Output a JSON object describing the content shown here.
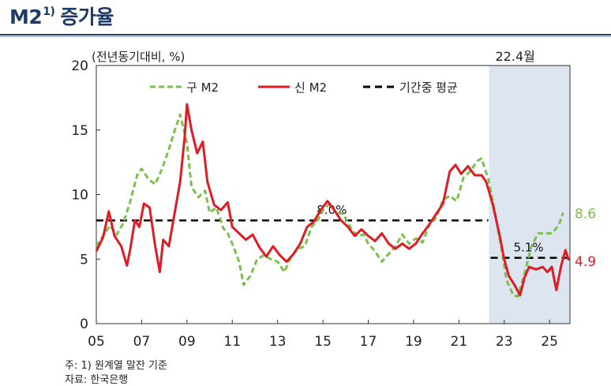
{
  "header": {
    "title": "M2",
    "title_sup": "1)",
    "title_rest": "증가율"
  },
  "chart_data": {
    "type": "line",
    "ylabel": "(전년동기대비, %)",
    "ylim": [
      0,
      20
    ],
    "yticks": [
      0,
      5,
      10,
      15,
      20
    ],
    "xlim": [
      2005,
      2025.9
    ],
    "xticks": [
      2005,
      2007,
      2009,
      2011,
      2013,
      2015,
      2017,
      2019,
      2021,
      2023,
      2025
    ],
    "xtick_labels": [
      "05",
      "07",
      "09",
      "11",
      "13",
      "15",
      "17",
      "19",
      "21",
      "23",
      "25"
    ],
    "shaded_region": {
      "start": 2022.33,
      "end": 2025.9,
      "label": "22.4월",
      "color": "#dce5f0"
    },
    "legend": {
      "position": "top",
      "items": [
        "구 M2",
        "신 M2",
        "기간중 평균"
      ]
    },
    "series": [
      {
        "name": "구 M2",
        "color": "#7cc04b",
        "style": "dashed",
        "points": [
          [
            2005.0,
            6.0
          ],
          [
            2005.3,
            6.8
          ],
          [
            2005.6,
            7.6
          ],
          [
            2005.9,
            6.9
          ],
          [
            2006.2,
            7.8
          ],
          [
            2006.5,
            9.5
          ],
          [
            2006.8,
            11.5
          ],
          [
            2007.0,
            12.0
          ],
          [
            2007.3,
            11.2
          ],
          [
            2007.6,
            10.8
          ],
          [
            2007.9,
            12.0
          ],
          [
            2008.2,
            13.5
          ],
          [
            2008.5,
            15.2
          ],
          [
            2008.7,
            16.2
          ],
          [
            2009.0,
            14.0
          ],
          [
            2009.2,
            10.6
          ],
          [
            2009.5,
            9.8
          ],
          [
            2009.8,
            10.3
          ],
          [
            2010.0,
            8.6
          ],
          [
            2010.3,
            9.0
          ],
          [
            2010.6,
            7.4
          ],
          [
            2010.8,
            7.0
          ],
          [
            2011.0,
            6.2
          ],
          [
            2011.3,
            4.8
          ],
          [
            2011.5,
            3.0
          ],
          [
            2011.8,
            3.7
          ],
          [
            2012.1,
            5.0
          ],
          [
            2012.4,
            5.3
          ],
          [
            2012.7,
            5.0
          ],
          [
            2013.0,
            4.8
          ],
          [
            2013.3,
            4.0
          ],
          [
            2013.6,
            5.2
          ],
          [
            2013.9,
            5.8
          ],
          [
            2014.2,
            6.0
          ],
          [
            2014.5,
            7.5
          ],
          [
            2014.8,
            8.1
          ],
          [
            2015.0,
            8.8
          ],
          [
            2015.3,
            9.3
          ],
          [
            2015.6,
            8.6
          ],
          [
            2015.9,
            8.5
          ],
          [
            2016.2,
            7.5
          ],
          [
            2016.5,
            6.8
          ],
          [
            2016.8,
            6.9
          ],
          [
            2017.0,
            6.2
          ],
          [
            2017.3,
            5.6
          ],
          [
            2017.6,
            4.8
          ],
          [
            2017.9,
            5.4
          ],
          [
            2018.2,
            6.0
          ],
          [
            2018.5,
            6.9
          ],
          [
            2018.8,
            6.2
          ],
          [
            2019.1,
            6.6
          ],
          [
            2019.4,
            6.3
          ],
          [
            2019.7,
            7.7
          ],
          [
            2020.0,
            8.2
          ],
          [
            2020.3,
            9.6
          ],
          [
            2020.6,
            9.9
          ],
          [
            2020.9,
            9.5
          ],
          [
            2021.2,
            11.3
          ],
          [
            2021.5,
            11.8
          ],
          [
            2021.8,
            12.6
          ],
          [
            2022.0,
            12.8
          ],
          [
            2022.3,
            11.2
          ],
          [
            2022.6,
            8.5
          ],
          [
            2022.9,
            5.6
          ],
          [
            2023.1,
            3.4
          ],
          [
            2023.4,
            2.2
          ],
          [
            2023.6,
            2.1
          ],
          [
            2023.9,
            3.9
          ],
          [
            2024.2,
            6.0
          ],
          [
            2024.5,
            7.0
          ],
          [
            2024.8,
            7.0
          ],
          [
            2025.1,
            7.0
          ],
          [
            2025.4,
            7.6
          ],
          [
            2025.6,
            8.6
          ]
        ]
      },
      {
        "name": "신 M2",
        "color": "#e01b24",
        "style": "solid",
        "points": [
          [
            2005.0,
            5.6
          ],
          [
            2005.3,
            6.7
          ],
          [
            2005.55,
            8.7
          ],
          [
            2005.8,
            6.8
          ],
          [
            2006.1,
            6.0
          ],
          [
            2006.35,
            4.5
          ],
          [
            2006.5,
            5.8
          ],
          [
            2006.7,
            8.0
          ],
          [
            2006.9,
            7.5
          ],
          [
            2007.1,
            9.3
          ],
          [
            2007.35,
            9.0
          ],
          [
            2007.6,
            6.0
          ],
          [
            2007.8,
            4.0
          ],
          [
            2007.95,
            6.5
          ],
          [
            2008.2,
            6.0
          ],
          [
            2008.45,
            8.5
          ],
          [
            2008.7,
            11.0
          ],
          [
            2008.9,
            14.5
          ],
          [
            2009.0,
            17.0
          ],
          [
            2009.2,
            15.0
          ],
          [
            2009.45,
            13.2
          ],
          [
            2009.7,
            14.1
          ],
          [
            2009.9,
            11.0
          ],
          [
            2010.2,
            9.2
          ],
          [
            2010.5,
            8.8
          ],
          [
            2010.8,
            9.4
          ],
          [
            2011.0,
            7.5
          ],
          [
            2011.3,
            7.0
          ],
          [
            2011.6,
            6.5
          ],
          [
            2011.9,
            6.9
          ],
          [
            2012.2,
            5.9
          ],
          [
            2012.5,
            5.2
          ],
          [
            2012.8,
            6.0
          ],
          [
            2013.1,
            5.3
          ],
          [
            2013.4,
            4.8
          ],
          [
            2013.7,
            5.4
          ],
          [
            2014.0,
            6.2
          ],
          [
            2014.3,
            7.5
          ],
          [
            2014.6,
            7.9
          ],
          [
            2014.9,
            8.8
          ],
          [
            2015.2,
            9.5
          ],
          [
            2015.5,
            8.8
          ],
          [
            2015.8,
            8.0
          ],
          [
            2016.1,
            7.5
          ],
          [
            2016.4,
            6.8
          ],
          [
            2016.7,
            7.3
          ],
          [
            2017.0,
            6.8
          ],
          [
            2017.3,
            6.4
          ],
          [
            2017.6,
            7.0
          ],
          [
            2017.9,
            6.2
          ],
          [
            2018.2,
            5.8
          ],
          [
            2018.5,
            6.2
          ],
          [
            2018.8,
            5.8
          ],
          [
            2019.1,
            6.2
          ],
          [
            2019.4,
            7.0
          ],
          [
            2019.7,
            7.7
          ],
          [
            2020.0,
            8.5
          ],
          [
            2020.3,
            9.3
          ],
          [
            2020.6,
            11.8
          ],
          [
            2020.85,
            12.3
          ],
          [
            2021.1,
            11.6
          ],
          [
            2021.4,
            12.2
          ],
          [
            2021.7,
            11.5
          ],
          [
            2022.0,
            11.5
          ],
          [
            2022.2,
            11.0
          ],
          [
            2022.5,
            9.2
          ],
          [
            2022.8,
            6.8
          ],
          [
            2023.0,
            5.0
          ],
          [
            2023.2,
            3.7
          ],
          [
            2023.45,
            3.0
          ],
          [
            2023.7,
            2.2
          ],
          [
            2023.9,
            3.6
          ],
          [
            2024.1,
            4.4
          ],
          [
            2024.4,
            4.2
          ],
          [
            2024.7,
            4.4
          ],
          [
            2024.9,
            4.0
          ],
          [
            2025.1,
            4.4
          ],
          [
            2025.3,
            2.6
          ],
          [
            2025.5,
            4.4
          ],
          [
            2025.7,
            5.7
          ],
          [
            2025.85,
            4.9
          ]
        ]
      }
    ],
    "averages": [
      {
        "name": "기간중 평균",
        "value": 8.0,
        "start": 2005.0,
        "end": 2022.3,
        "label": "8.0%"
      },
      {
        "name": "기간중 평균",
        "value": 5.1,
        "start": 2022.4,
        "end": 2025.9,
        "label": "5.1%"
      }
    ],
    "end_labels": [
      {
        "series": "구 M2",
        "text": "8.6",
        "color": "#7cc04b"
      },
      {
        "series": "신 M2",
        "text": "4.9",
        "color": "#e01b24"
      }
    ]
  },
  "footnotes": [
    "주: 1) 원계열 말잔 기준",
    "자료: 한국은행"
  ]
}
